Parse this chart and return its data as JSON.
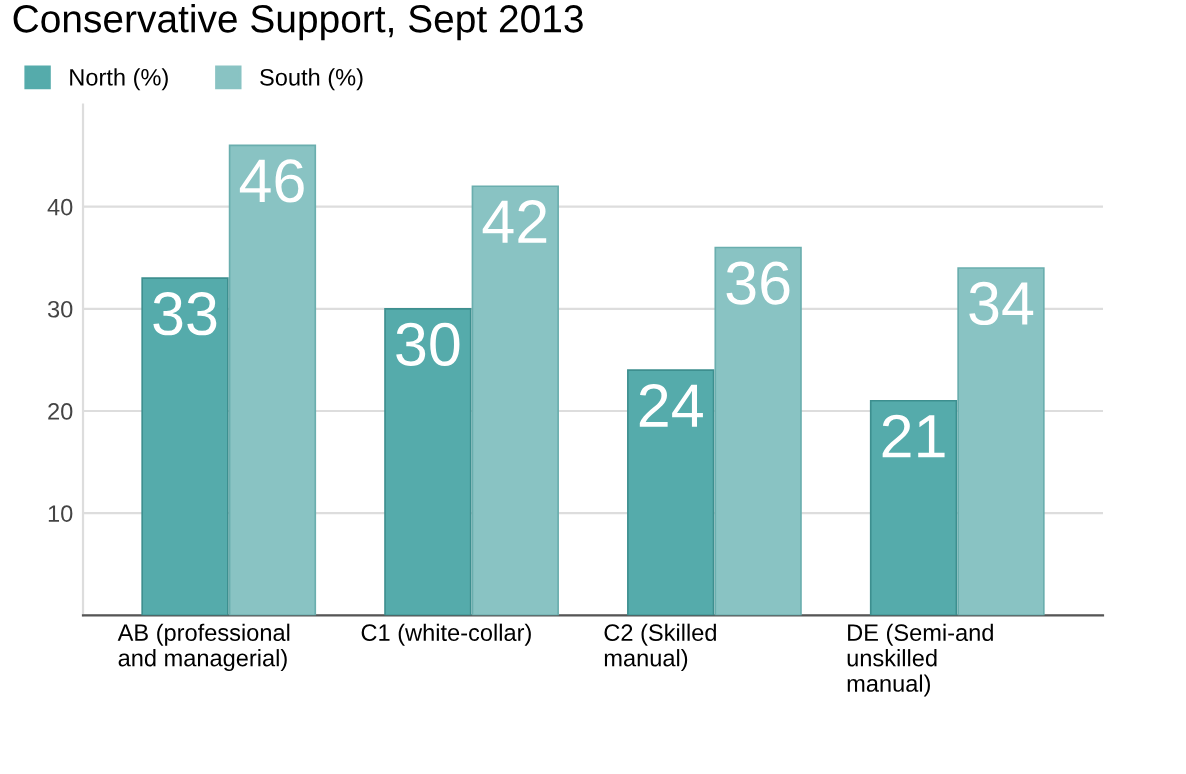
{
  "chart_data": {
    "type": "bar",
    "title": "Conservative Support, Sept 2013",
    "categories": [
      "AB (professional\nand managerial)",
      "C1 (white-collar)",
      "C2 (Skilled\nmanual)",
      "DE (Semi-and\nunskilled\nmanual)"
    ],
    "series": [
      {
        "name": "North (%)",
        "color": "#55abab",
        "values": [
          33,
          30,
          24,
          21
        ]
      },
      {
        "name": "South (%)",
        "color": "#89c3c3",
        "values": [
          46,
          42,
          36,
          34
        ]
      }
    ],
    "ylim": [
      0,
      50
    ],
    "yticks": [
      {
        "value": 0,
        "label": null
      },
      10,
      20,
      30,
      40
    ],
    "grid": "y",
    "legend": "top left",
    "data_labels": true
  }
}
